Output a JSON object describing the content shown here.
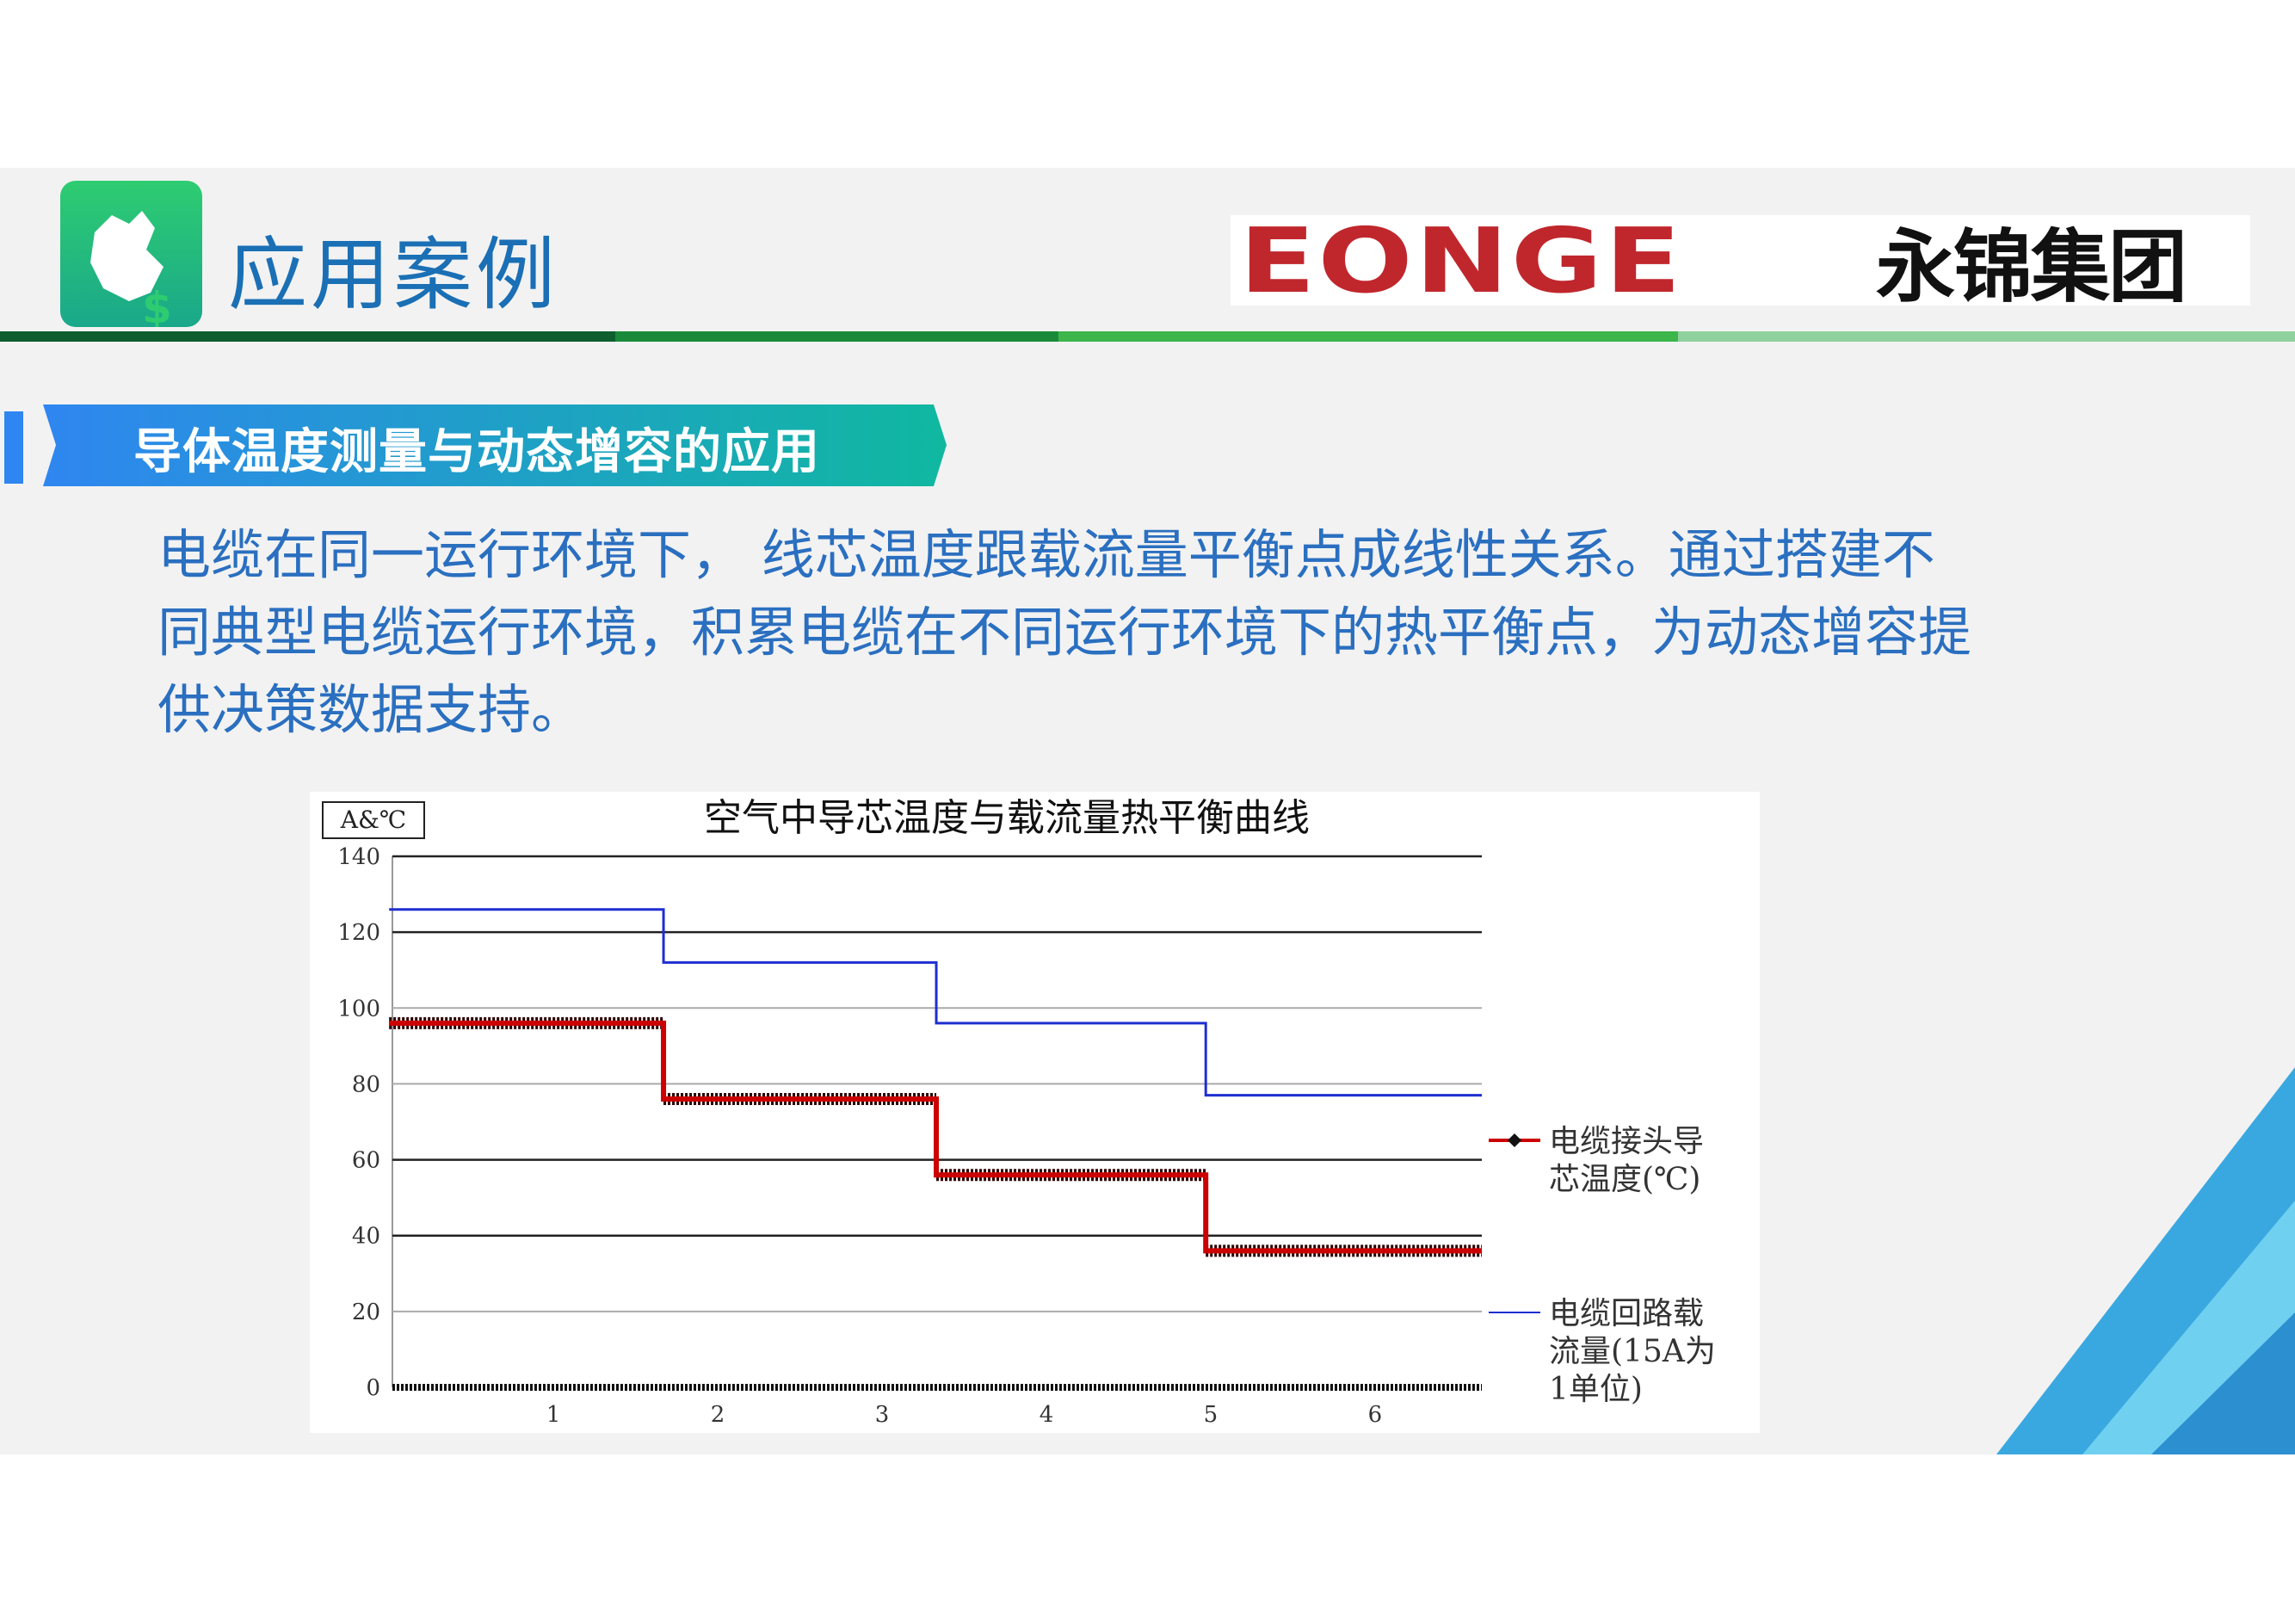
{
  "header": {
    "title": "应用案例",
    "logo_en": "EONGE",
    "logo_cn": "永锦集团"
  },
  "colors": {
    "title": "#1a6fb5",
    "logo_red": "#c0272d",
    "banner_start": "#2f86f0",
    "banner_end": "#10b8a0",
    "body_text": "#2a6fc0",
    "rule": [
      "#0e5e2e",
      "#1a8a3a",
      "#3cb54a",
      "#8fd19e"
    ]
  },
  "section": {
    "banner": "导体温度测量与动态增容的应用"
  },
  "body": {
    "paragraph": "电缆在同一运行环境下， 线芯温度跟载流量平衡点成线性关系。通过搭建不同典型电缆运行环境，积累电缆在不同运行环境下的热平衡点，为动态增容提供决策数据支持。"
  },
  "chart_data": {
    "type": "line",
    "title": "空气中导芯温度与载流量热平衡曲线",
    "unit_label": "A&℃",
    "ylim": [
      0,
      140
    ],
    "yticks": [
      "0",
      "20",
      "40",
      "60",
      "80",
      "100",
      "120",
      "140"
    ],
    "xticks": [
      "1",
      "2",
      "3",
      "4",
      "5",
      "6"
    ],
    "grid": true,
    "legend_position": "right",
    "series": [
      {
        "name": "电缆接头导芯温度(℃)",
        "color": "#cc0000",
        "x": [
          0,
          1.67,
          1.67,
          3.33,
          3.33,
          4.97,
          4.97,
          6.65
        ],
        "y": [
          96,
          96,
          76,
          76,
          56,
          56,
          36,
          36
        ]
      },
      {
        "name": "电缆回路载流量(15A为1单位)",
        "color": "#1f2fd0",
        "x": [
          0,
          1.67,
          1.67,
          3.33,
          3.33,
          4.97,
          4.97,
          6.65
        ],
        "y": [
          126,
          126,
          112,
          112,
          96,
          96,
          77,
          77
        ]
      }
    ],
    "legend": {
      "temp_line1": "电缆接头导",
      "temp_line2": "芯温度(℃)",
      "current_line1": "电缆回路载",
      "current_line2": "流量(15A为",
      "current_line3": "1单位)"
    }
  }
}
